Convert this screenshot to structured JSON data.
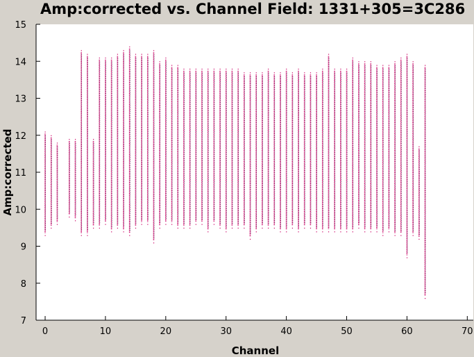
{
  "chart_data": {
    "type": "scatter",
    "title": "Amp:corrected vs. Channel Field: 1331+305=3C286",
    "xlabel": "Channel",
    "ylabel": "Amp:corrected",
    "xlim": [
      -1.5,
      71
    ],
    "ylim": [
      7,
      15
    ],
    "xticks": [
      0,
      10,
      20,
      30,
      40,
      50,
      60,
      70
    ],
    "yticks": [
      7,
      8,
      9,
      10,
      11,
      12,
      13,
      14,
      15
    ],
    "grid": false,
    "marker_color": "#cc0066",
    "secondary_marker_color": "#1a1a40",
    "series": [
      {
        "channels": [
          0,
          1,
          2,
          4,
          5,
          6,
          7,
          8,
          9,
          10,
          11,
          12,
          13,
          14,
          15,
          16,
          17,
          18,
          19,
          20,
          21,
          22,
          23,
          24,
          25,
          26,
          27,
          28,
          29,
          30,
          31,
          32,
          33,
          34,
          35,
          36,
          37,
          38,
          39,
          40,
          41,
          42,
          43,
          44,
          45,
          46,
          47,
          48,
          49,
          50,
          51,
          52,
          53,
          54,
          55,
          56,
          57,
          58,
          59,
          60,
          61,
          62,
          63
        ],
        "min": [
          9.3,
          9.5,
          9.6,
          9.8,
          9.7,
          9.3,
          9.3,
          9.5,
          9.5,
          9.6,
          9.4,
          9.5,
          9.4,
          9.3,
          9.5,
          9.6,
          9.6,
          9.1,
          9.5,
          9.6,
          9.6,
          9.5,
          9.5,
          9.5,
          9.6,
          9.6,
          9.4,
          9.6,
          9.5,
          9.4,
          9.5,
          9.5,
          9.5,
          9.2,
          9.4,
          9.5,
          9.5,
          9.5,
          9.4,
          9.4,
          9.5,
          9.4,
          9.5,
          9.5,
          9.4,
          9.4,
          9.4,
          9.4,
          9.4,
          9.4,
          9.4,
          9.5,
          9.4,
          9.4,
          9.4,
          9.3,
          9.4,
          9.3,
          9.3,
          8.7,
          9.3,
          9.2,
          7.6
        ],
        "max": [
          12.1,
          12.0,
          11.8,
          11.9,
          11.9,
          14.3,
          14.2,
          11.9,
          14.1,
          14.1,
          14.1,
          14.2,
          14.3,
          14.4,
          14.2,
          14.2,
          14.2,
          14.3,
          14.0,
          14.1,
          13.9,
          13.9,
          13.8,
          13.8,
          13.8,
          13.8,
          13.8,
          13.8,
          13.8,
          13.8,
          13.8,
          13.8,
          13.7,
          13.7,
          13.7,
          13.7,
          13.8,
          13.7,
          13.7,
          13.8,
          13.7,
          13.8,
          13.7,
          13.7,
          13.7,
          13.8,
          14.2,
          13.8,
          13.8,
          13.8,
          14.1,
          14.0,
          14.0,
          14.0,
          13.9,
          13.9,
          13.9,
          14.0,
          14.1,
          14.2,
          14.0,
          11.7,
          13.9
        ]
      }
    ]
  }
}
